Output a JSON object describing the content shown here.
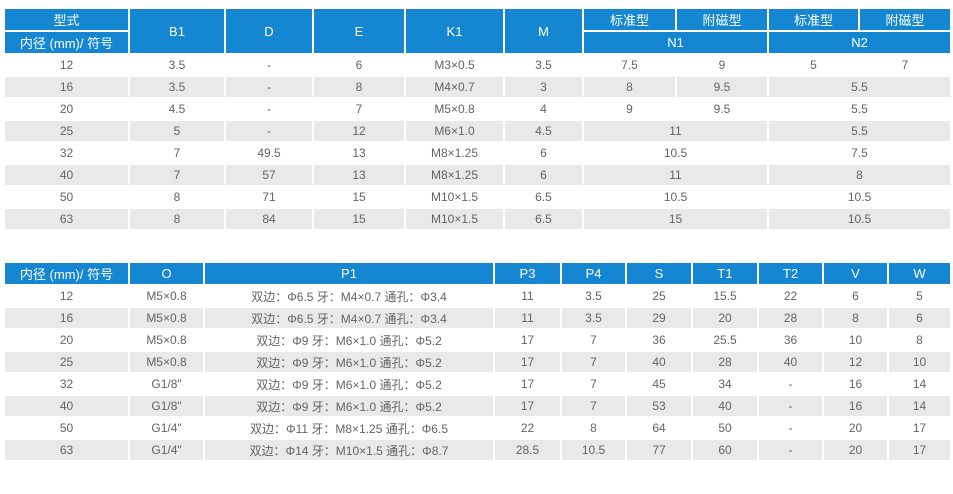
{
  "colors": {
    "header_bg": "#1587d2",
    "stripe_bg": "#e9e9e9",
    "header_text": "#ffffff",
    "body_text": "#636466"
  },
  "table1": {
    "header": {
      "type_label": "型式",
      "bore_label": "内径 (mm)/ 符号",
      "b1": "B1",
      "d": "D",
      "e": "E",
      "k1": "K1",
      "m": "M",
      "standard": "标准型",
      "magnetic": "附磁型",
      "n1": "N1",
      "n2": "N2"
    },
    "rows": [
      [
        "12",
        "3.5",
        "-",
        "6",
        "M3×0.5",
        "3.5",
        "7.5",
        "9",
        "5",
        "7"
      ],
      [
        "16",
        "3.5",
        "-",
        "8",
        "M4×0.7",
        "3",
        "8",
        "9.5",
        {
          "t": "5.5",
          "cs": 2
        }
      ],
      [
        "20",
        "4.5",
        "-",
        "7",
        "M5×0.8",
        "4",
        "9",
        "9.5",
        {
          "t": "5.5",
          "cs": 2
        }
      ],
      [
        "25",
        "5",
        "-",
        "12",
        "M6×1.0",
        "4.5",
        {
          "t": "11",
          "cs": 2
        },
        {
          "t": "5.5",
          "cs": 2
        }
      ],
      [
        "32",
        "7",
        "49.5",
        "13",
        "M8×1.25",
        "6",
        {
          "t": "10.5",
          "cs": 2
        },
        {
          "t": "7.5",
          "cs": 2
        }
      ],
      [
        "40",
        "7",
        "57",
        "13",
        "M8×1.25",
        "6",
        {
          "t": "11",
          "cs": 2
        },
        {
          "t": "8",
          "cs": 2
        }
      ],
      [
        "50",
        "8",
        "71",
        "15",
        "M10×1.5",
        "6.5",
        {
          "t": "10.5",
          "cs": 2
        },
        {
          "t": "10.5",
          "cs": 2
        }
      ],
      [
        "63",
        "8",
        "84",
        "15",
        "M10×1.5",
        "6.5",
        {
          "t": "15",
          "cs": 2
        },
        {
          "t": "10.5",
          "cs": 2
        }
      ]
    ]
  },
  "table2": {
    "header": {
      "bore_label": "内径 (mm)/ 符号",
      "o": "O",
      "p1": "P1",
      "p3": "P3",
      "p4": "P4",
      "s": "S",
      "t1": "T1",
      "t2": "T2",
      "v": "V",
      "w": "W"
    },
    "rows": [
      [
        "12",
        "M5×0.8",
        "双边：Φ6.5 牙：M4×0.7 通孔：Φ3.4",
        "11",
        "3.5",
        "25",
        "15.5",
        "22",
        "6",
        "5"
      ],
      [
        "16",
        "M5×0.8",
        "双边：Φ6.5 牙：M4×0.7 通孔：Φ3.4",
        "11",
        "3.5",
        "29",
        "20",
        "28",
        "8",
        "6"
      ],
      [
        "20",
        "M5×0.8",
        "双边：Φ9 牙：M6×1.0 通孔：Φ5.2",
        "17",
        "7",
        "36",
        "25.5",
        "36",
        "10",
        "8"
      ],
      [
        "25",
        "M5×0.8",
        "双边：Φ9 牙：M6×1.0 通孔：Φ5.2",
        "17",
        "7",
        "40",
        "28",
        "40",
        "12",
        "10"
      ],
      [
        "32",
        "G1/8\"",
        "双边：Φ9 牙：M6×1.0 通孔：Φ5.2",
        "17",
        "7",
        "45",
        "34",
        "-",
        "16",
        "14"
      ],
      [
        "40",
        "G1/8\"",
        "双边：Φ9 牙：M6×1.0 通孔：Φ5.2",
        "17",
        "7",
        "53",
        "40",
        "-",
        "16",
        "14"
      ],
      [
        "50",
        "G1/4\"",
        "双边：Φ11 牙：M8×1.25 通孔：Φ6.5",
        "22",
        "8",
        "64",
        "50",
        "-",
        "20",
        "17"
      ],
      [
        "63",
        "G1/4\"",
        "双边：Φ14 牙：M10×1.5 通孔：Φ8.7",
        "28.5",
        "10.5",
        "77",
        "60",
        "-",
        "20",
        "17"
      ]
    ]
  }
}
